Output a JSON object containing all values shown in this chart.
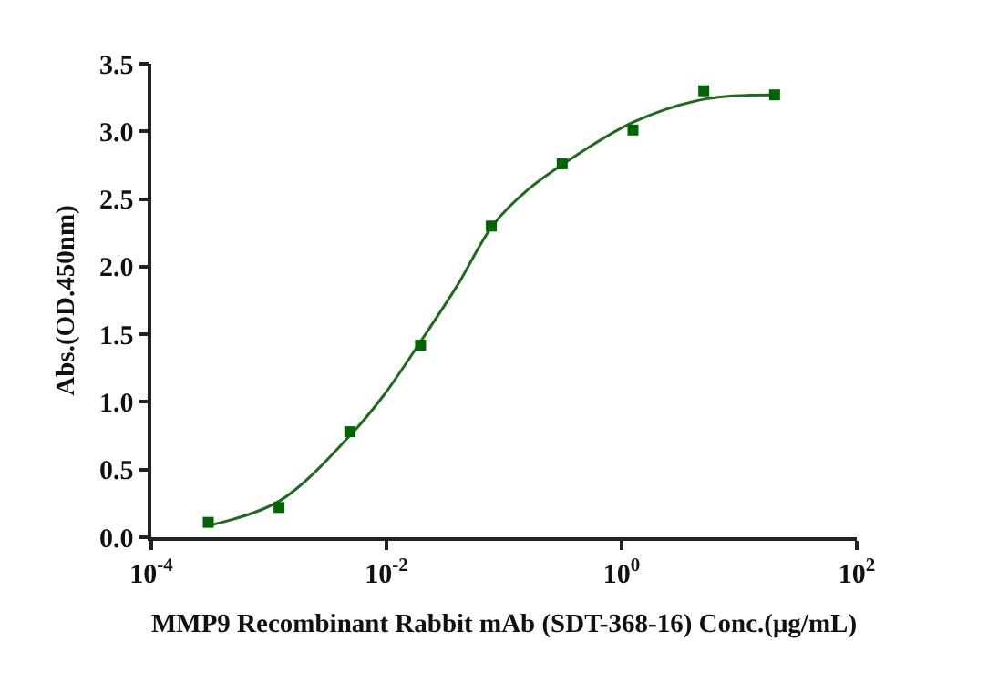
{
  "chart_data": {
    "type": "scatter",
    "xlabel": "MMP9 Recombinant Rabbit mAb (SDT-368-16) Conc.(μg/mL)",
    "ylabel": "Abs.(OD.450nm)",
    "log": "x",
    "grid": false,
    "marker": "square",
    "xlim": [
      0.0001,
      100
    ],
    "xticks": [
      {
        "value": 0.0001,
        "label": "10$^{-4}$"
      },
      {
        "value": 0.01,
        "label": "10$^{-2}$"
      },
      {
        "value": 1,
        "label": "10$^{0}$"
      },
      {
        "value": 100,
        "label": "10$^{2}$"
      }
    ],
    "ylim": [
      0,
      3.5
    ],
    "yticks": [
      {
        "value": 0,
        "label": "0.0"
      },
      {
        "value": 0.5,
        "label": "0.5"
      },
      {
        "value": 1,
        "label": "1.0"
      },
      {
        "value": 1.5,
        "label": "1.5"
      },
      {
        "value": 2,
        "label": "2.0"
      },
      {
        "value": 2.5,
        "label": "2.5"
      },
      {
        "value": 3,
        "label": "3.0"
      },
      {
        "value": 3.5,
        "label": "3.5"
      }
    ],
    "series": [
      {
        "type": "line",
        "color": "#1e6b1e",
        "marker": "none",
        "line_style": "solid",
        "x": [
          0.00032,
          0.00124,
          0.005,
          0.0095,
          0.02,
          0.04,
          0.081,
          0.16,
          0.32,
          1.27,
          5.2,
          21
        ],
        "values": [
          0.09,
          0.27,
          0.76,
          1.05,
          1.46,
          1.86,
          2.31,
          2.57,
          2.76,
          3.07,
          3.24,
          3.27
        ]
      },
      {
        "color": "#006400",
        "x": [
          0.000305,
          0.00122,
          0.00488,
          0.0195,
          0.078,
          0.3125,
          1.25,
          5,
          20
        ],
        "values": [
          0.11,
          0.22,
          0.78,
          1.42,
          2.3,
          2.76,
          3.01,
          3.3,
          3.27
        ]
      }
    ]
  }
}
